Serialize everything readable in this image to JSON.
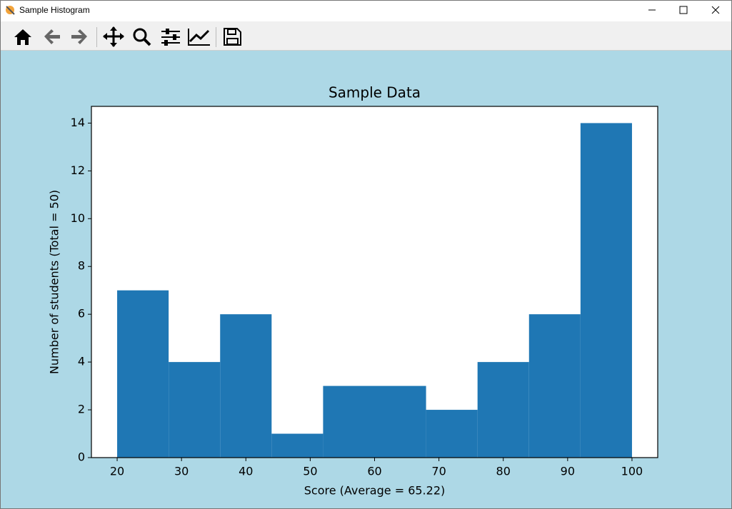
{
  "window": {
    "title": "Sample Histogram"
  },
  "chart_data": {
    "type": "histogram",
    "title": "Sample Data",
    "x_label": "Score (Average = 65.22)",
    "y_label": "Number of students (Total = 50)",
    "bins": [
      20,
      28,
      36,
      44,
      52,
      60,
      68,
      76,
      84,
      92,
      100
    ],
    "values": [
      7,
      4,
      6,
      1,
      3,
      3,
      2,
      4,
      6,
      14
    ],
    "color": "#1f77b4",
    "xlim": [
      16,
      104
    ],
    "xticks": [
      20,
      30,
      40,
      50,
      60,
      70,
      80,
      90,
      100
    ],
    "ylim": [
      0,
      14.7
    ],
    "yticks": [
      0,
      2,
      4,
      6,
      8,
      10,
      12,
      14
    ]
  }
}
